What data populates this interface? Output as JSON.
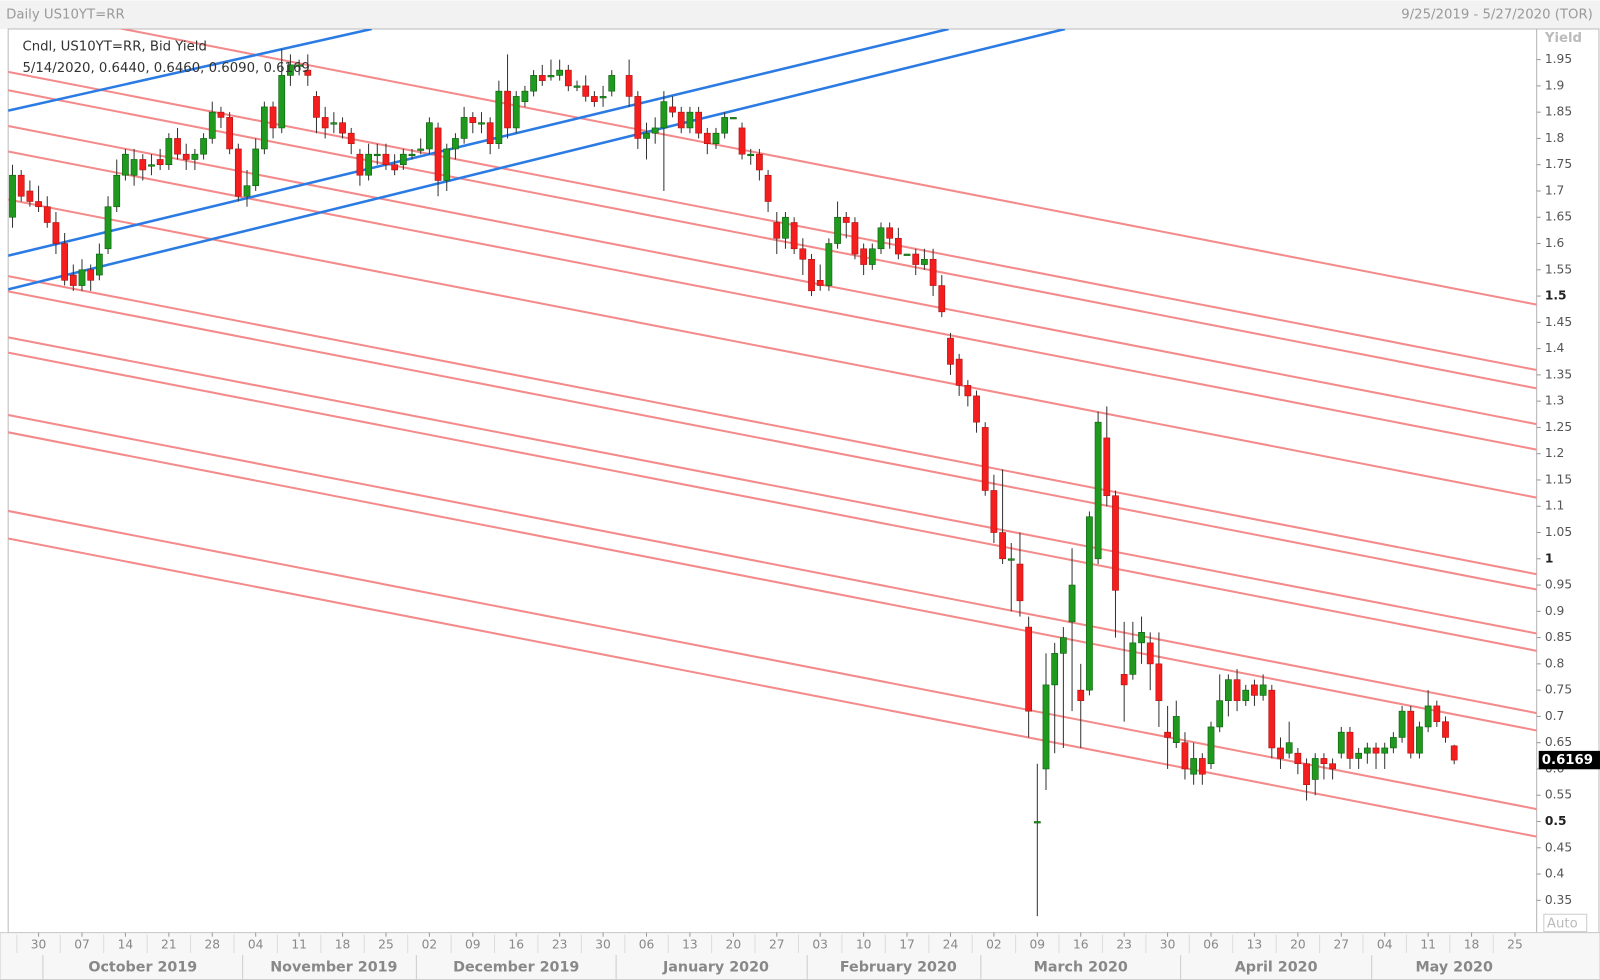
{
  "chart_data": {
    "type": "candlestick",
    "title": "Daily US10YT=RR",
    "subtitle": "9/25/2019 - 5/27/2020 (TOR)",
    "legend": [
      "Cndl, US10YT=RR, Bid Yield",
      "5/14/2020, 0.6440, 0.6460, 0.6090, 0.6169"
    ],
    "y_label": "Yield",
    "scale_mode": "Auto",
    "last_value": 0.6169,
    "up_color": "#1f9a1f",
    "down_color": "#f51e1e",
    "grid": false,
    "xlim": [
      "2019-09-25",
      "2020-05-27"
    ],
    "ylim": [
      0.2885,
      2.0083
    ],
    "yticks": [
      0.35,
      0.4,
      0.45,
      0.5,
      0.55,
      0.6,
      0.65,
      0.7,
      0.75,
      0.8,
      0.85,
      0.9,
      0.95,
      1,
      1.05,
      1.1,
      1.15,
      1.2,
      1.25,
      1.3,
      1.35,
      1.4,
      1.45,
      1.5,
      1.55,
      1.6,
      1.65,
      1.7,
      1.75,
      1.8,
      1.85,
      1.9,
      1.95
    ],
    "xticks": [
      {
        "value": "2019-09-30",
        "label": "30"
      },
      {
        "value": "2019-10-07",
        "label": "07"
      },
      {
        "value": "2019-10-14",
        "label": "14"
      },
      {
        "value": "2019-10-21",
        "label": "21"
      },
      {
        "value": "2019-10-28",
        "label": "28"
      },
      {
        "value": "2019-11-04",
        "label": "04"
      },
      {
        "value": "2019-11-11",
        "label": "11"
      },
      {
        "value": "2019-11-18",
        "label": "18"
      },
      {
        "value": "2019-11-25",
        "label": "25"
      },
      {
        "value": "2019-12-02",
        "label": "02"
      },
      {
        "value": "2019-12-09",
        "label": "09"
      },
      {
        "value": "2019-12-16",
        "label": "16"
      },
      {
        "value": "2019-12-23",
        "label": "23"
      },
      {
        "value": "2019-12-30",
        "label": "30"
      },
      {
        "value": "2020-01-06",
        "label": "06"
      },
      {
        "value": "2020-01-13",
        "label": "13"
      },
      {
        "value": "2020-01-20",
        "label": "20"
      },
      {
        "value": "2020-01-27",
        "label": "27"
      },
      {
        "value": "2020-02-03",
        "label": "03"
      },
      {
        "value": "2020-02-10",
        "label": "10"
      },
      {
        "value": "2020-02-17",
        "label": "17"
      },
      {
        "value": "2020-02-24",
        "label": "24"
      },
      {
        "value": "2020-03-02",
        "label": "02"
      },
      {
        "value": "2020-03-09",
        "label": "09"
      },
      {
        "value": "2020-03-16",
        "label": "16"
      },
      {
        "value": "2020-03-23",
        "label": "23"
      },
      {
        "value": "2020-03-30",
        "label": "30"
      },
      {
        "value": "2020-04-06",
        "label": "06"
      },
      {
        "value": "2020-04-13",
        "label": "13"
      },
      {
        "value": "2020-04-20",
        "label": "20"
      },
      {
        "value": "2020-04-27",
        "label": "27"
      },
      {
        "value": "2020-05-04",
        "label": "04"
      },
      {
        "value": "2020-05-11",
        "label": "11"
      },
      {
        "value": "2020-05-18",
        "label": "18"
      },
      {
        "value": "2020-05-25",
        "label": "25"
      }
    ],
    "months": [
      "October 2019",
      "November 2019",
      "December 2019",
      "January 2020",
      "February 2020",
      "March 2020",
      "April 2020",
      "May 2020"
    ],
    "x": [
      "2019-09-25",
      "2019-09-26",
      "2019-09-27",
      "2019-09-30",
      "2019-10-01",
      "2019-10-02",
      "2019-10-03",
      "2019-10-04",
      "2019-10-07",
      "2019-10-08",
      "2019-10-09",
      "2019-10-10",
      "2019-10-11",
      "2019-10-14",
      "2019-10-15",
      "2019-10-16",
      "2019-10-17",
      "2019-10-18",
      "2019-10-21",
      "2019-10-22",
      "2019-10-23",
      "2019-10-24",
      "2019-10-25",
      "2019-10-28",
      "2019-10-29",
      "2019-10-30",
      "2019-10-31",
      "2019-11-01",
      "2019-11-04",
      "2019-11-05",
      "2019-11-06",
      "2019-11-07",
      "2019-11-08",
      "2019-11-11",
      "2019-11-12",
      "2019-11-13",
      "2019-11-14",
      "2019-11-15",
      "2019-11-18",
      "2019-11-19",
      "2019-11-20",
      "2019-11-21",
      "2019-11-22",
      "2019-11-25",
      "2019-11-26",
      "2019-11-27",
      "2019-11-28",
      "2019-11-29",
      "2019-12-02",
      "2019-12-03",
      "2019-12-04",
      "2019-12-05",
      "2019-12-06",
      "2019-12-09",
      "2019-12-10",
      "2019-12-11",
      "2019-12-12",
      "2019-12-13",
      "2019-12-16",
      "2019-12-17",
      "2019-12-18",
      "2019-12-19",
      "2019-12-20",
      "2019-12-23",
      "2019-12-24",
      "2019-12-25",
      "2019-12-26",
      "2019-12-27",
      "2019-12-30",
      "2019-12-31",
      "2020-01-02",
      "2020-01-03",
      "2020-01-06",
      "2020-01-07",
      "2020-01-08",
      "2020-01-09",
      "2020-01-10",
      "2020-01-13",
      "2020-01-14",
      "2020-01-15",
      "2020-01-16",
      "2020-01-17",
      "2020-01-20",
      "2020-01-21",
      "2020-01-22",
      "2020-01-23",
      "2020-01-24",
      "2020-01-27",
      "2020-01-28",
      "2020-01-29",
      "2020-01-30",
      "2020-01-31",
      "2020-02-03",
      "2020-02-04",
      "2020-02-05",
      "2020-02-06",
      "2020-02-07",
      "2020-02-10",
      "2020-02-11",
      "2020-02-12",
      "2020-02-13",
      "2020-02-14",
      "2020-02-17",
      "2020-02-18",
      "2020-02-19",
      "2020-02-20",
      "2020-02-21",
      "2020-02-24",
      "2020-02-25",
      "2020-02-26",
      "2020-02-27",
      "2020-02-28",
      "2020-03-02",
      "2020-03-03",
      "2020-03-04",
      "2020-03-05",
      "2020-03-06",
      "2020-03-09",
      "2020-03-10",
      "2020-03-11",
      "2020-03-12",
      "2020-03-13",
      "2020-03-16",
      "2020-03-17",
      "2020-03-18",
      "2020-03-19",
      "2020-03-20",
      "2020-03-23",
      "2020-03-24",
      "2020-03-25",
      "2020-03-26",
      "2020-03-27",
      "2020-03-30",
      "2020-03-31",
      "2020-04-01",
      "2020-04-02",
      "2020-04-03",
      "2020-04-06",
      "2020-04-07",
      "2020-04-08",
      "2020-04-09",
      "2020-04-10",
      "2020-04-13",
      "2020-04-14",
      "2020-04-15",
      "2020-04-16",
      "2020-04-17",
      "2020-04-20",
      "2020-04-21",
      "2020-04-22",
      "2020-04-23",
      "2020-04-24",
      "2020-04-27",
      "2020-04-28",
      "2020-04-29",
      "2020-04-30",
      "2020-05-01",
      "2020-05-04",
      "2020-05-05",
      "2020-05-06",
      "2020-05-07",
      "2020-05-08",
      "2020-05-11",
      "2020-05-12",
      "2020-05-13",
      "2020-05-14"
    ],
    "ohlc": [
      [
        1.65,
        1.75,
        1.63,
        1.73
      ],
      [
        1.73,
        1.74,
        1.68,
        1.69
      ],
      [
        1.7,
        1.72,
        1.67,
        1.68
      ],
      [
        1.68,
        1.71,
        1.66,
        1.67
      ],
      [
        1.67,
        1.69,
        1.63,
        1.64
      ],
      [
        1.64,
        1.66,
        1.58,
        1.6
      ],
      [
        1.6,
        1.62,
        1.52,
        1.53
      ],
      [
        1.54,
        1.56,
        1.51,
        1.52
      ],
      [
        1.52,
        1.57,
        1.51,
        1.55
      ],
      [
        1.55,
        1.56,
        1.51,
        1.53
      ],
      [
        1.54,
        1.6,
        1.53,
        1.58
      ],
      [
        1.59,
        1.69,
        1.58,
        1.67
      ],
      [
        1.67,
        1.76,
        1.66,
        1.73
      ],
      [
        1.73,
        1.78,
        1.72,
        1.77
      ],
      [
        1.73,
        1.78,
        1.71,
        1.76
      ],
      [
        1.76,
        1.77,
        1.72,
        1.74
      ],
      [
        1.75,
        1.77,
        1.73,
        1.75
      ],
      [
        1.76,
        1.78,
        1.74,
        1.75
      ],
      [
        1.75,
        1.81,
        1.74,
        1.8
      ],
      [
        1.8,
        1.82,
        1.76,
        1.77
      ],
      [
        1.77,
        1.79,
        1.74,
        1.76
      ],
      [
        1.76,
        1.78,
        1.74,
        1.77
      ],
      [
        1.77,
        1.81,
        1.76,
        1.8
      ],
      [
        1.8,
        1.87,
        1.79,
        1.85
      ],
      [
        1.85,
        1.86,
        1.82,
        1.84
      ],
      [
        1.84,
        1.85,
        1.77,
        1.78
      ],
      [
        1.78,
        1.79,
        1.68,
        1.69
      ],
      [
        1.69,
        1.74,
        1.67,
        1.71
      ],
      [
        1.71,
        1.8,
        1.7,
        1.78
      ],
      [
        1.78,
        1.87,
        1.77,
        1.86
      ],
      [
        1.86,
        1.87,
        1.8,
        1.82
      ],
      [
        1.82,
        1.97,
        1.81,
        1.92
      ],
      [
        1.92,
        1.96,
        1.9,
        1.94
      ],
      [
        1.94,
        1.95,
        1.92,
        1.94
      ],
      [
        1.93,
        1.96,
        1.9,
        1.92
      ],
      [
        1.88,
        1.89,
        1.81,
        1.84
      ],
      [
        1.84,
        1.86,
        1.8,
        1.82
      ],
      [
        1.83,
        1.85,
        1.81,
        1.83
      ],
      [
        1.83,
        1.84,
        1.8,
        1.81
      ],
      [
        1.81,
        1.82,
        1.77,
        1.79
      ],
      [
        1.77,
        1.78,
        1.71,
        1.73
      ],
      [
        1.73,
        1.79,
        1.72,
        1.77
      ],
      [
        1.77,
        1.79,
        1.75,
        1.77
      ],
      [
        1.77,
        1.79,
        1.74,
        1.75
      ],
      [
        1.75,
        1.77,
        1.73,
        1.74
      ],
      [
        1.75,
        1.78,
        1.74,
        1.77
      ],
      [
        1.77,
        1.78,
        1.76,
        1.77
      ],
      [
        1.78,
        1.8,
        1.77,
        1.78
      ],
      [
        1.78,
        1.84,
        1.77,
        1.83
      ],
      [
        1.82,
        1.83,
        1.69,
        1.72
      ],
      [
        1.72,
        1.79,
        1.7,
        1.78
      ],
      [
        1.78,
        1.81,
        1.76,
        1.8
      ],
      [
        1.8,
        1.86,
        1.79,
        1.84
      ],
      [
        1.84,
        1.85,
        1.81,
        1.83
      ],
      [
        1.83,
        1.85,
        1.81,
        1.83
      ],
      [
        1.83,
        1.84,
        1.77,
        1.79
      ],
      [
        1.79,
        1.91,
        1.78,
        1.89
      ],
      [
        1.89,
        1.96,
        1.8,
        1.82
      ],
      [
        1.82,
        1.89,
        1.81,
        1.88
      ],
      [
        1.87,
        1.9,
        1.86,
        1.89
      ],
      [
        1.89,
        1.93,
        1.88,
        1.92
      ],
      [
        1.92,
        1.94,
        1.9,
        1.91
      ],
      [
        1.92,
        1.95,
        1.91,
        1.92
      ],
      [
        1.92,
        1.95,
        1.91,
        1.93
      ],
      [
        1.93,
        1.94,
        1.89,
        1.9
      ],
      [
        1.9,
        1.91,
        1.89,
        1.9
      ],
      [
        1.9,
        1.92,
        1.87,
        1.88
      ],
      [
        1.88,
        1.89,
        1.86,
        1.87
      ],
      [
        1.88,
        1.9,
        1.86,
        1.88
      ],
      [
        1.89,
        1.93,
        1.88,
        1.92
      ],
      [
        1.92,
        1.95,
        1.86,
        1.88
      ],
      [
        1.88,
        1.89,
        1.78,
        1.8
      ],
      [
        1.8,
        1.83,
        1.76,
        1.81
      ],
      [
        1.81,
        1.84,
        1.79,
        1.82
      ],
      [
        1.82,
        1.89,
        1.7,
        1.87
      ],
      [
        1.86,
        1.88,
        1.84,
        1.85
      ],
      [
        1.85,
        1.86,
        1.81,
        1.82
      ],
      [
        1.82,
        1.86,
        1.81,
        1.85
      ],
      [
        1.85,
        1.86,
        1.8,
        1.81
      ],
      [
        1.81,
        1.82,
        1.77,
        1.79
      ],
      [
        1.79,
        1.82,
        1.78,
        1.81
      ],
      [
        1.81,
        1.85,
        1.8,
        1.84
      ],
      [
        1.84,
        1.84,
        1.84,
        1.84
      ],
      [
        1.82,
        1.83,
        1.76,
        1.77
      ],
      [
        1.77,
        1.78,
        1.75,
        1.77
      ],
      [
        1.77,
        1.78,
        1.72,
        1.74
      ],
      [
        1.73,
        1.74,
        1.66,
        1.68
      ],
      [
        1.64,
        1.66,
        1.58,
        1.61
      ],
      [
        1.61,
        1.66,
        1.59,
        1.65
      ],
      [
        1.64,
        1.65,
        1.58,
        1.59
      ],
      [
        1.59,
        1.61,
        1.54,
        1.57
      ],
      [
        1.57,
        1.58,
        1.5,
        1.51
      ],
      [
        1.53,
        1.56,
        1.51,
        1.52
      ],
      [
        1.52,
        1.61,
        1.51,
        1.6
      ],
      [
        1.6,
        1.68,
        1.59,
        1.65
      ],
      [
        1.65,
        1.66,
        1.61,
        1.64
      ],
      [
        1.64,
        1.65,
        1.57,
        1.58
      ],
      [
        1.59,
        1.6,
        1.54,
        1.56
      ],
      [
        1.56,
        1.6,
        1.55,
        1.59
      ],
      [
        1.59,
        1.64,
        1.58,
        1.63
      ],
      [
        1.63,
        1.64,
        1.59,
        1.61
      ],
      [
        1.61,
        1.63,
        1.57,
        1.58
      ],
      [
        1.58,
        1.58,
        1.58,
        1.58
      ],
      [
        1.58,
        1.59,
        1.54,
        1.56
      ],
      [
        1.56,
        1.59,
        1.55,
        1.57
      ],
      [
        1.57,
        1.59,
        1.5,
        1.52
      ],
      [
        1.52,
        1.54,
        1.46,
        1.47
      ],
      [
        1.42,
        1.43,
        1.35,
        1.37
      ],
      [
        1.38,
        1.39,
        1.31,
        1.33
      ],
      [
        1.33,
        1.34,
        1.29,
        1.31
      ],
      [
        1.31,
        1.32,
        1.24,
        1.26
      ],
      [
        1.25,
        1.26,
        1.12,
        1.13
      ],
      [
        1.13,
        1.16,
        1.03,
        1.05
      ],
      [
        1.05,
        1.17,
        0.99,
        1.0
      ],
      [
        1.0,
        1.03,
        0.9,
        1.0
      ],
      [
        0.99,
        1.05,
        0.89,
        0.92
      ],
      [
        0.87,
        0.89,
        0.66,
        0.71
      ],
      [
        0.5,
        0.61,
        0.32,
        0.5
      ],
      [
        0.6,
        0.82,
        0.56,
        0.76
      ],
      [
        0.76,
        0.84,
        0.63,
        0.82
      ],
      [
        0.82,
        0.87,
        0.64,
        0.85
      ],
      [
        0.88,
        1.02,
        0.71,
        0.95
      ],
      [
        0.75,
        0.8,
        0.64,
        0.73
      ],
      [
        0.75,
        1.09,
        0.74,
        1.08
      ],
      [
        1.0,
        1.28,
        0.99,
        1.26
      ],
      [
        1.23,
        1.29,
        1.1,
        1.12
      ],
      [
        1.12,
        1.13,
        0.85,
        0.94
      ],
      [
        0.78,
        0.88,
        0.69,
        0.76
      ],
      [
        0.78,
        0.88,
        0.77,
        0.84
      ],
      [
        0.84,
        0.89,
        0.8,
        0.86
      ],
      [
        0.84,
        0.86,
        0.75,
        0.8
      ],
      [
        0.8,
        0.86,
        0.68,
        0.73
      ],
      [
        0.67,
        0.72,
        0.6,
        0.66
      ],
      [
        0.65,
        0.73,
        0.64,
        0.7
      ],
      [
        0.65,
        0.67,
        0.58,
        0.6
      ],
      [
        0.59,
        0.65,
        0.57,
        0.62
      ],
      [
        0.62,
        0.63,
        0.57,
        0.59
      ],
      [
        0.61,
        0.69,
        0.6,
        0.68
      ],
      [
        0.68,
        0.78,
        0.67,
        0.73
      ],
      [
        0.73,
        0.78,
        0.7,
        0.77
      ],
      [
        0.77,
        0.79,
        0.71,
        0.73
      ],
      [
        0.73,
        0.76,
        0.72,
        0.75
      ],
      [
        0.76,
        0.77,
        0.72,
        0.74
      ],
      [
        0.74,
        0.78,
        0.73,
        0.76
      ],
      [
        0.75,
        0.76,
        0.62,
        0.64
      ],
      [
        0.64,
        0.66,
        0.6,
        0.62
      ],
      [
        0.63,
        0.69,
        0.62,
        0.65
      ],
      [
        0.63,
        0.64,
        0.59,
        0.61
      ],
      [
        0.61,
        0.62,
        0.54,
        0.57
      ],
      [
        0.58,
        0.63,
        0.55,
        0.62
      ],
      [
        0.62,
        0.63,
        0.58,
        0.61
      ],
      [
        0.61,
        0.62,
        0.58,
        0.6
      ],
      [
        0.63,
        0.68,
        0.62,
        0.67
      ],
      [
        0.67,
        0.68,
        0.6,
        0.62
      ],
      [
        0.62,
        0.64,
        0.6,
        0.63
      ],
      [
        0.63,
        0.65,
        0.61,
        0.64
      ],
      [
        0.64,
        0.65,
        0.6,
        0.63
      ],
      [
        0.63,
        0.65,
        0.6,
        0.64
      ],
      [
        0.64,
        0.67,
        0.63,
        0.66
      ],
      [
        0.66,
        0.72,
        0.65,
        0.71
      ],
      [
        0.71,
        0.72,
        0.62,
        0.63
      ],
      [
        0.63,
        0.69,
        0.62,
        0.68
      ],
      [
        0.68,
        0.75,
        0.67,
        0.72
      ],
      [
        0.72,
        0.73,
        0.68,
        0.69
      ],
      [
        0.69,
        0.7,
        0.65,
        0.66
      ],
      [
        0.644,
        0.646,
        0.609,
        0.6169
      ]
    ]
  }
}
